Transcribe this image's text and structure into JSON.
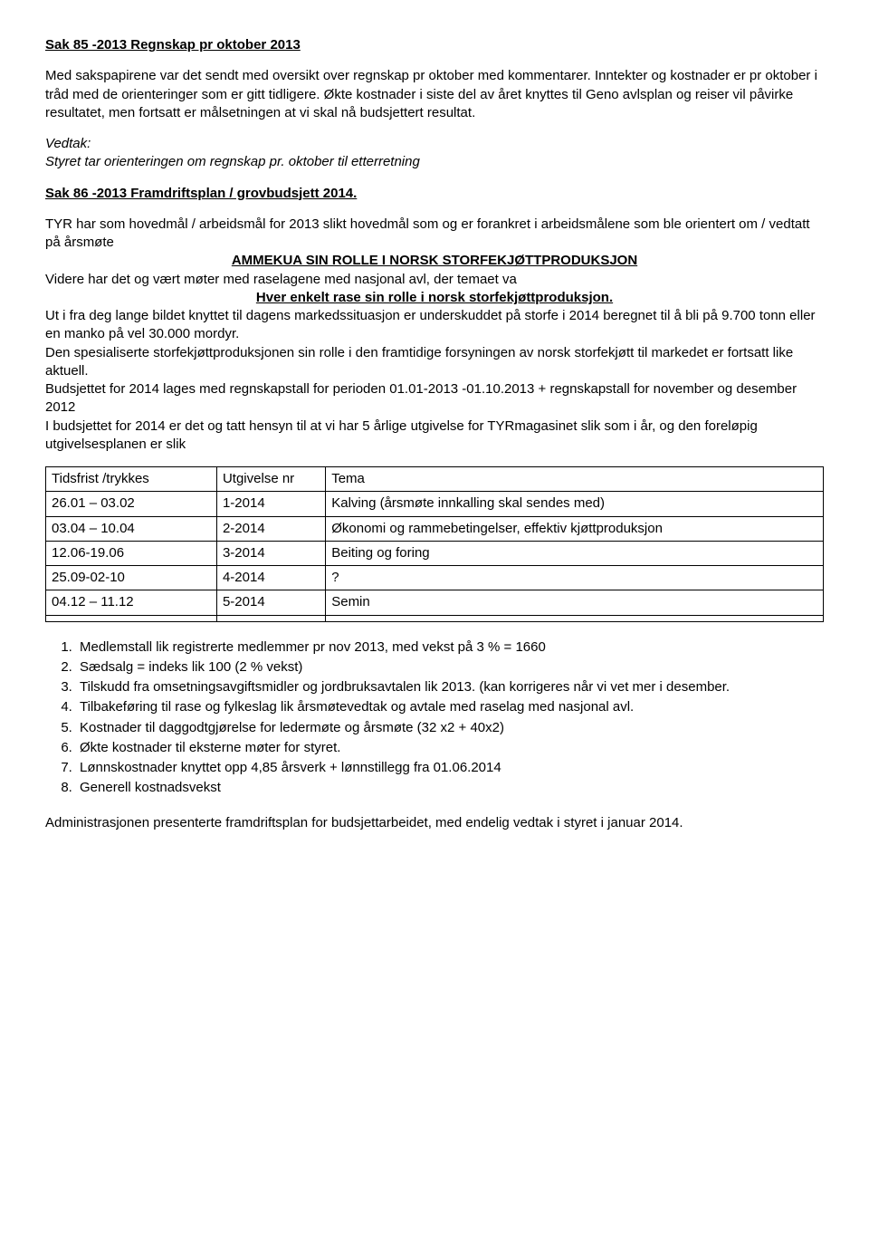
{
  "sec85": {
    "title": "Sak 85 -2013 Regnskap pr oktober 2013",
    "p1": "Med sakspapirene var det sendt med oversikt over regnskap pr oktober med kommentarer. Inntekter og kostnader er pr oktober i tråd med de orienteringer som er gitt tidligere. Økte kostnader i siste del av året knyttes til Geno avlsplan og reiser vil påvirke resultatet, men fortsatt er målsetningen at vi skal nå budsjettert resultat.",
    "vedtak_label": "Vedtak:",
    "vedtak_text": "Styret tar orienteringen om regnskap pr. oktober til etterretning"
  },
  "sec86": {
    "title": "Sak 86 -2013 Framdriftsplan / grovbudsjett 2014.",
    "p1a": "TYR har som hovedmål / arbeidsmål for 2013 slikt hovedmål som og er forankret i arbeidsmålene som ble orientert om / vedtatt på årsmøte",
    "role_line": "AMMEKUA SIN ROLLE I NORSK STORFEKJØTTPRODUKSJON",
    "p1b": "Videre har det og vært møter med raselagene med nasjonal avl, der temaet va",
    "rase_line": "Hver enkelt rase sin rolle i norsk storfekjøttproduksjon.",
    "p2": "Ut i fra deg lange bildet knyttet til dagens markedssituasjon er underskuddet på storfe i 2014 beregnet til å bli på 9.700 tonn eller en manko på vel 30.000 mordyr.",
    "p3": "Den spesialiserte storfekjøttproduksjonen sin rolle i den framtidige forsyningen av norsk storfekjøtt til markedet er fortsatt like aktuell.",
    "p4": "Budsjettet for 2014 lages med regnskapstall for perioden 01.01-2013 -01.10.2013 + regnskapstall for november og desember 2012",
    "p5": "I budsjettet for 2014 er det og tatt hensyn til at vi har 5 årlige utgivelse for TYRmagasinet slik som i år, og den foreløpig utgivelsesplanen er slik"
  },
  "table": {
    "headers": [
      "Tidsfrist /trykkes",
      "Utgivelse nr",
      "Tema"
    ],
    "rows": [
      [
        "26.01 – 03.02",
        "1-2014",
        "Kalving (årsmøte innkalling skal sendes med)"
      ],
      [
        "03.04 – 10.04",
        "2-2014",
        "Økonomi og rammebetingelser, effektiv kjøttproduksjon"
      ],
      [
        "12.06-19.06",
        "3-2014",
        "Beiting og foring"
      ],
      [
        "25.09-02-10",
        "4-2014",
        "?"
      ],
      [
        "04.12 – 11.12",
        "5-2014",
        "Semin"
      ],
      [
        "",
        "",
        ""
      ]
    ]
  },
  "list": {
    "items": [
      "Medlemstall lik registrerte medlemmer pr nov 2013, med vekst på 3 % = 1660",
      "Sædsalg = indeks lik 100 (2 % vekst)",
      "Tilskudd fra omsetningsavgiftsmidler og jordbruksavtalen lik 2013. (kan korrigeres når vi vet mer i desember.",
      "Tilbakeføring til rase og fylkeslag lik årsmøtevedtak og avtale med raselag med nasjonal avl.",
      "Kostnader til daggodtgjørelse for ledermøte og årsmøte (32 x2 + 40x2)",
      "Økte kostnader til eksterne møter for styret.",
      "Lønnskostnader knyttet opp 4,85 årsverk + lønnstillegg fra 01.06.2014",
      "Generell kostnadsvekst"
    ]
  },
  "closing": "Administrasjonen presenterte framdriftsplan for budsjettarbeidet, med endelig vedtak i styret i januar 2014."
}
